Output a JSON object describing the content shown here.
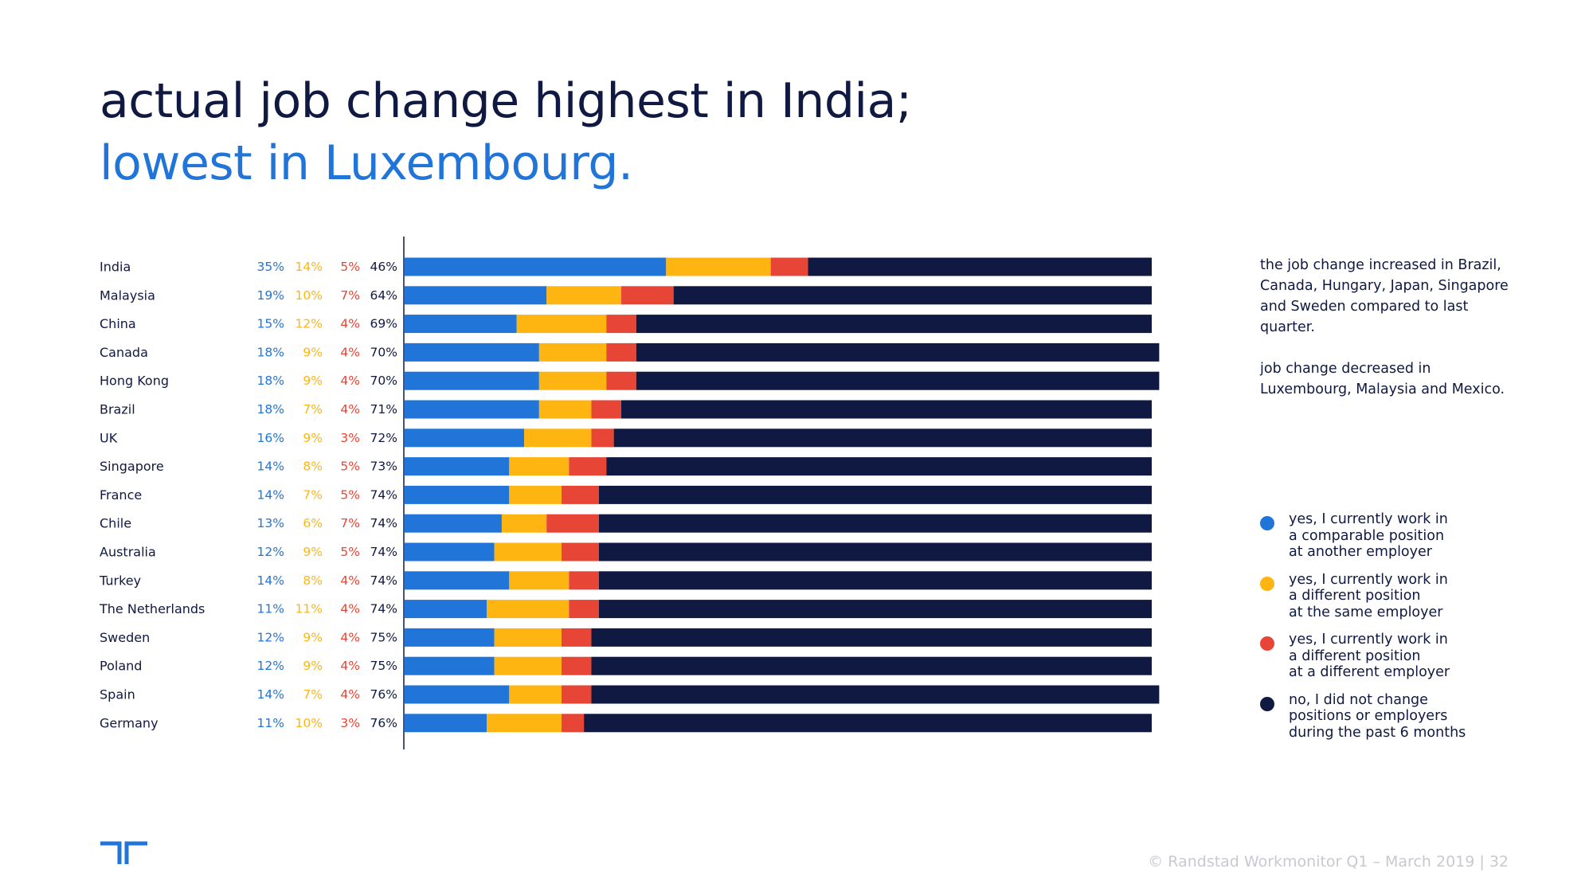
{
  "title": {
    "line1": "actual job change highest in India;",
    "line2": "lowest in Luxembourg."
  },
  "notes": [
    "the job change increased in Brazil, Canada, Hungary, Japan, Singapore and Sweden compared to last quarter.",
    "job change decreased in Luxembourg, Malaysia and Mexico."
  ],
  "footer": "© Randstad Workmonitor Q1 – March 2019  |  32",
  "logo_icon": "randstad-logo-icon",
  "colors": {
    "blue": "#2175d9",
    "yellow": "#ffb511",
    "red": "#e74536",
    "navy": "#0f1941"
  },
  "chart_data": {
    "type": "bar",
    "orientation": "horizontal",
    "stacked": true,
    "percent_labels_position": "left of bars",
    "categories": [
      "India",
      "Malaysia",
      "China",
      "Canada",
      "Hong Kong",
      "Brazil",
      "UK",
      "Singapore",
      "France",
      "Chile",
      "Australia",
      "Turkey",
      "The Netherlands",
      "Sweden",
      "Poland",
      "Spain",
      "Germany"
    ],
    "series": [
      {
        "name": "yes, I currently work in\na comparable position\nat another employer",
        "color": "#2175d9",
        "values": [
          35,
          19,
          15,
          18,
          18,
          18,
          16,
          14,
          14,
          13,
          12,
          14,
          11,
          12,
          12,
          14,
          11
        ]
      },
      {
        "name": "yes, I currently work in\na different position\nat the same employer",
        "color": "#ffb511",
        "values": [
          14,
          10,
          12,
          9,
          9,
          7,
          9,
          8,
          7,
          6,
          9,
          8,
          11,
          9,
          9,
          7,
          10
        ]
      },
      {
        "name": "yes, I currently work in\na different position\nat a different employer",
        "color": "#e74536",
        "values": [
          5,
          7,
          4,
          4,
          4,
          4,
          3,
          5,
          5,
          7,
          5,
          4,
          4,
          4,
          4,
          4,
          3
        ]
      },
      {
        "name": "no, I did not change\npositions or employers\nduring the past 6 months",
        "color": "#0f1941",
        "values": [
          46,
          64,
          69,
          70,
          70,
          71,
          72,
          73,
          74,
          74,
          74,
          74,
          74,
          75,
          75,
          76,
          76
        ]
      }
    ],
    "xlim": [
      0,
      100
    ],
    "grid": false,
    "legend": "right"
  }
}
